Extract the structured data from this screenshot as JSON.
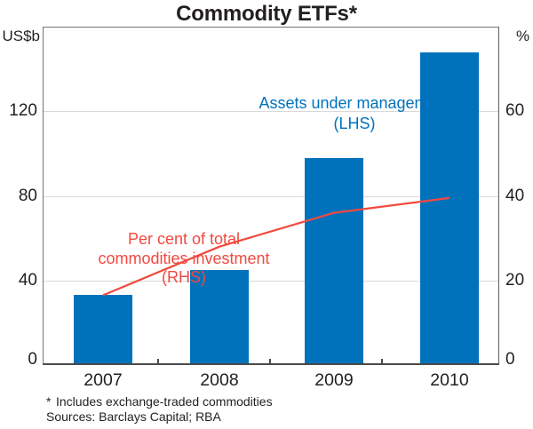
{
  "title": "Commodity ETFs*",
  "axis": {
    "left_unit": "US$b",
    "right_unit": "%",
    "left_ticks": [
      0,
      40,
      80,
      120
    ],
    "right_ticks": [
      0,
      20,
      40,
      60
    ],
    "left_range": [
      0,
      160
    ],
    "right_range": [
      0,
      80
    ]
  },
  "chart_data": {
    "type": "bar+line",
    "categories": [
      "2007",
      "2008",
      "2009",
      "2010"
    ],
    "series": [
      {
        "name": "Assets under management (LHS)",
        "type": "bar",
        "axis": "left",
        "unit": "US$b",
        "values": [
          33,
          45,
          98,
          148
        ]
      },
      {
        "name": "Per cent of total commodities investment (RHS)",
        "type": "line",
        "axis": "right",
        "unit": "%",
        "values": [
          16.5,
          28,
          36,
          39.5
        ]
      }
    ],
    "title": "Commodity ETFs*",
    "ylabel_left": "US$b",
    "ylabel_right": "%",
    "ylim_left": [
      0,
      160
    ],
    "ylim_right": [
      0,
      80
    ],
    "grid": true,
    "legend_position": "in-plot text annotations"
  },
  "annotations": {
    "bar_label_line1": "Assets under management",
    "bar_label_line2": "(LHS)",
    "line_label_line1": "Per cent of total",
    "line_label_line2": "commodities investment",
    "line_label_line3": "(RHS)"
  },
  "footnote": {
    "marker": "*",
    "text": "Includes exchange-traded commodities",
    "sources": "Sources: Barclays Capital; RBA"
  },
  "colors": {
    "bar": "#0072bc",
    "line": "#f2493f",
    "bar_label_text": "#0072bc",
    "line_label_text": "#f2493f",
    "grid": "#d9d9d9",
    "frame": "#757575",
    "axis_bottom": "#4a4a4a"
  }
}
